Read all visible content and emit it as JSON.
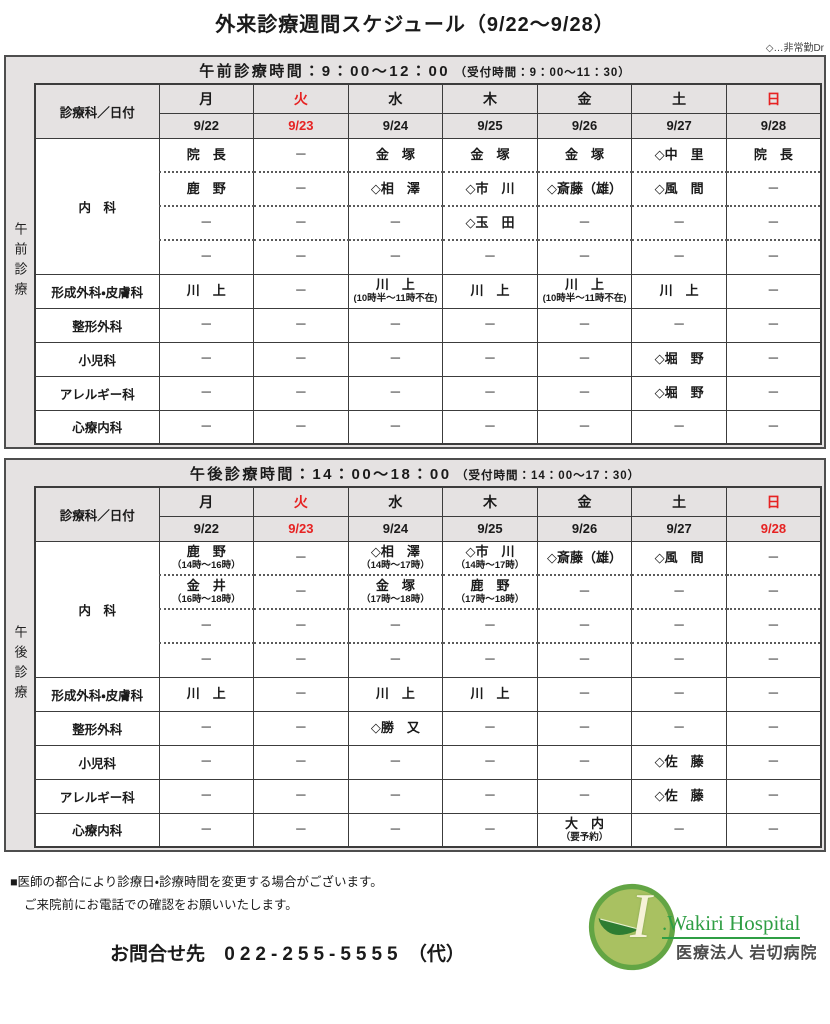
{
  "page": {
    "title": "外来診療週間スケジュール（9/22～9/28）",
    "legend": "◇…非常勤Dr"
  },
  "corner_label": "診療科／日付",
  "days": [
    "月",
    "火",
    "水",
    "木",
    "金",
    "土",
    "日"
  ],
  "sections": {
    "morning": {
      "side_label": "午前診療",
      "title": "午前診療時間：9：00～12：00",
      "reception": "（受付時間：9：00～11：30）",
      "day_red": [
        false,
        true,
        false,
        false,
        false,
        false,
        true
      ],
      "dates": [
        {
          "text": "9/22",
          "red": false
        },
        {
          "text": "9/23",
          "red": true
        },
        {
          "text": "9/24",
          "red": false
        },
        {
          "text": "9/25",
          "red": false
        },
        {
          "text": "9/26",
          "red": false
        },
        {
          "text": "9/27",
          "red": false
        },
        {
          "text": "9/28",
          "red": false
        }
      ],
      "departments": [
        {
          "label": "内　科",
          "rows": [
            [
              {
                "t": "院　長"
              },
              {
                "t": "－"
              },
              {
                "t": "金　塚"
              },
              {
                "t": "金　塚"
              },
              {
                "t": "金　塚"
              },
              {
                "t": "◇中　里"
              },
              {
                "t": "院　長"
              }
            ],
            [
              {
                "t": "鹿　野"
              },
              {
                "t": "－"
              },
              {
                "t": "◇相　澤"
              },
              {
                "t": "◇市　川"
              },
              {
                "t": "◇斎藤（雄）"
              },
              {
                "t": "◇風　間"
              },
              {
                "t": "－"
              }
            ],
            [
              {
                "t": "－"
              },
              {
                "t": "－"
              },
              {
                "t": "－"
              },
              {
                "t": "◇玉　田"
              },
              {
                "t": "－"
              },
              {
                "t": "－"
              },
              {
                "t": "－"
              }
            ],
            [
              {
                "t": "－"
              },
              {
                "t": "－"
              },
              {
                "t": "－"
              },
              {
                "t": "－"
              },
              {
                "t": "－"
              },
              {
                "t": "－"
              },
              {
                "t": "－"
              }
            ]
          ]
        },
        {
          "label": "形成外科・皮膚科",
          "rows": [
            [
              {
                "t": "川　上"
              },
              {
                "t": "－"
              },
              {
                "t": "川　上",
                "n": "(10時半～11時不在)"
              },
              {
                "t": "川　上"
              },
              {
                "t": "川　上",
                "n": "(10時半～11時不在)"
              },
              {
                "t": "川　上"
              },
              {
                "t": "－"
              }
            ]
          ]
        },
        {
          "label": "整形外科",
          "rows": [
            [
              {
                "t": "－"
              },
              {
                "t": "－"
              },
              {
                "t": "－"
              },
              {
                "t": "－"
              },
              {
                "t": "－"
              },
              {
                "t": "－"
              },
              {
                "t": "－"
              }
            ]
          ]
        },
        {
          "label": "小児科",
          "rows": [
            [
              {
                "t": "－"
              },
              {
                "t": "－"
              },
              {
                "t": "－"
              },
              {
                "t": "－"
              },
              {
                "t": "－"
              },
              {
                "t": "◇堀　野"
              },
              {
                "t": "－"
              }
            ]
          ]
        },
        {
          "label": "アレルギー科",
          "rows": [
            [
              {
                "t": "－"
              },
              {
                "t": "－"
              },
              {
                "t": "－"
              },
              {
                "t": "－"
              },
              {
                "t": "－"
              },
              {
                "t": "◇堀　野"
              },
              {
                "t": "－"
              }
            ]
          ]
        },
        {
          "label": "心療内科",
          "rows": [
            [
              {
                "t": "－"
              },
              {
                "t": "－"
              },
              {
                "t": "－"
              },
              {
                "t": "－"
              },
              {
                "t": "－"
              },
              {
                "t": "－"
              },
              {
                "t": "－"
              }
            ]
          ]
        }
      ]
    },
    "afternoon": {
      "side_label": "午後診療",
      "title": "午後診療時間：14：00～18：00",
      "reception": "（受付時間：14：00～17：30）",
      "day_red": [
        false,
        true,
        false,
        false,
        false,
        false,
        true
      ],
      "dates": [
        {
          "text": "9/22",
          "red": false
        },
        {
          "text": "9/23",
          "red": true
        },
        {
          "text": "9/24",
          "red": false
        },
        {
          "text": "9/25",
          "red": false
        },
        {
          "text": "9/26",
          "red": false
        },
        {
          "text": "9/27",
          "red": false
        },
        {
          "text": "9/28",
          "red": true
        }
      ],
      "departments": [
        {
          "label": "内　科",
          "rows": [
            [
              {
                "t": "鹿　野",
                "n": "（14時～16時）"
              },
              {
                "t": "－"
              },
              {
                "t": "◇相　澤",
                "n": "（14時～17時）"
              },
              {
                "t": "◇市　川",
                "n": "（14時～17時）"
              },
              {
                "t": "◇斎藤（雄）"
              },
              {
                "t": "◇風　間"
              },
              {
                "t": "－"
              }
            ],
            [
              {
                "t": "金　井",
                "n": "（16時～18時）"
              },
              {
                "t": "－"
              },
              {
                "t": "金　塚",
                "n": "（17時～18時）"
              },
              {
                "t": "鹿　野",
                "n": "（17時～18時）"
              },
              {
                "t": "－"
              },
              {
                "t": "－"
              },
              {
                "t": "－"
              }
            ],
            [
              {
                "t": "－"
              },
              {
                "t": "－"
              },
              {
                "t": "－"
              },
              {
                "t": "－"
              },
              {
                "t": "－"
              },
              {
                "t": "－"
              },
              {
                "t": "－"
              }
            ],
            [
              {
                "t": "－"
              },
              {
                "t": "－"
              },
              {
                "t": "－"
              },
              {
                "t": "－"
              },
              {
                "t": "－"
              },
              {
                "t": "－"
              },
              {
                "t": "－"
              }
            ]
          ]
        },
        {
          "label": "形成外科・皮膚科",
          "rows": [
            [
              {
                "t": "川　上"
              },
              {
                "t": "－"
              },
              {
                "t": "川　上"
              },
              {
                "t": "川　上"
              },
              {
                "t": "－"
              },
              {
                "t": "－"
              },
              {
                "t": "－"
              }
            ]
          ]
        },
        {
          "label": "整形外科",
          "rows": [
            [
              {
                "t": "－"
              },
              {
                "t": "－"
              },
              {
                "t": "◇勝　又"
              },
              {
                "t": "－"
              },
              {
                "t": "－"
              },
              {
                "t": "－"
              },
              {
                "t": "－"
              }
            ]
          ]
        },
        {
          "label": "小児科",
          "rows": [
            [
              {
                "t": "－"
              },
              {
                "t": "－"
              },
              {
                "t": "－"
              },
              {
                "t": "－"
              },
              {
                "t": "－"
              },
              {
                "t": "◇佐　藤"
              },
              {
                "t": "－"
              }
            ]
          ]
        },
        {
          "label": "アレルギー科",
          "rows": [
            [
              {
                "t": "－"
              },
              {
                "t": "－"
              },
              {
                "t": "－"
              },
              {
                "t": "－"
              },
              {
                "t": "－"
              },
              {
                "t": "◇佐　藤"
              },
              {
                "t": "－"
              }
            ]
          ]
        },
        {
          "label": "心療内科",
          "rows": [
            [
              {
                "t": "－"
              },
              {
                "t": "－"
              },
              {
                "t": "－"
              },
              {
                "t": "－"
              },
              {
                "t": "大　内",
                "n": "（要予約）"
              },
              {
                "t": "－"
              },
              {
                "t": "－"
              }
            ]
          ]
        }
      ]
    }
  },
  "footer": {
    "note1": "■医師の都合により診療日・診療時間を変更する場合がございます。",
    "note2": "ご来院前にお電話での確認をお願いいたします。",
    "contact_label": "お問合せ先",
    "contact_number": "022-255-5555",
    "contact_suffix": "（代）",
    "logo": {
      "letter": "I",
      "english": ".Wakiri Hospital",
      "japanese": "医療法人 岩切病院"
    }
  },
  "colors": {
    "holiday_red": "#e62222",
    "header_gray": "#e5e2e2",
    "logo_green": "#2f9e44",
    "logo_circle_fill": "#a9c161",
    "logo_circle_ring": "#63a544"
  }
}
